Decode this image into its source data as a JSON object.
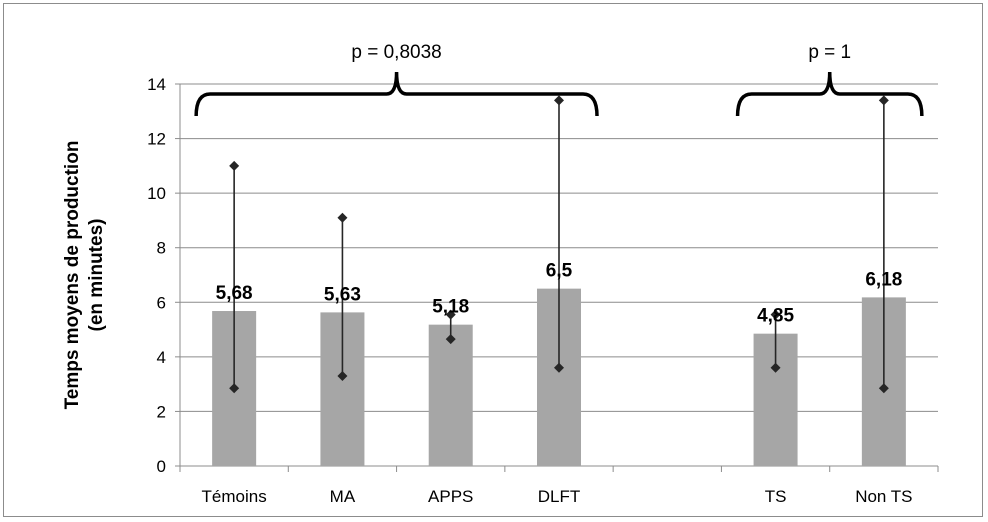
{
  "chart_data": {
    "type": "bar",
    "title": "",
    "xlabel": "",
    "ylabel_lines": [
      "Temps moyens de production",
      "(en minutes)"
    ],
    "ylim": [
      0,
      14
    ],
    "yticks": [
      0,
      2,
      4,
      6,
      8,
      10,
      12,
      14
    ],
    "grid": true,
    "legend": "none",
    "bar_color": "#a6a6a6",
    "categories": [
      "Témoins",
      "MA",
      "APPS",
      "DLFT",
      "",
      "TS",
      "Non TS"
    ],
    "values": [
      5.68,
      5.63,
      5.18,
      6.5,
      null,
      4.85,
      6.18
    ],
    "data_labels": [
      "5,68",
      "5,63",
      "5,18",
      "6,5",
      "",
      "4,85",
      "6,18"
    ],
    "error_low": [
      2.85,
      3.3,
      4.65,
      3.6,
      null,
      3.6,
      2.85
    ],
    "error_high": [
      11.0,
      9.1,
      5.55,
      13.4,
      null,
      5.55,
      13.4
    ],
    "annotations": [
      {
        "text": "p = 0,8038",
        "from_category": 0,
        "to_category": 3
      },
      {
        "text": "p = 1",
        "from_category": 5,
        "to_category": 6
      }
    ]
  }
}
